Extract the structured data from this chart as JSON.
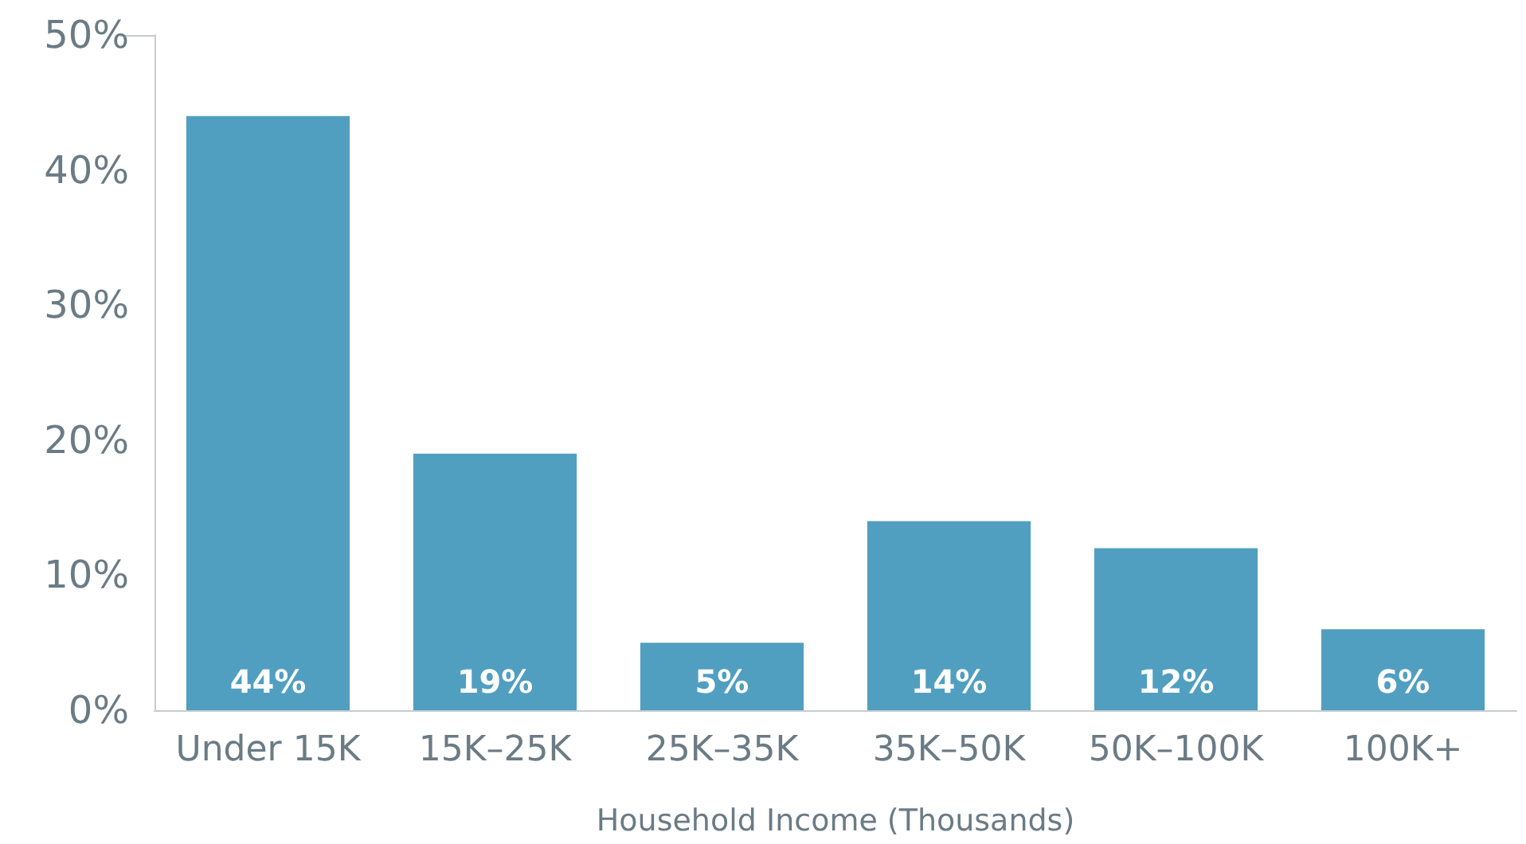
{
  "chart_data": {
    "type": "bar",
    "xlabel": "Household Income (Thousands)",
    "categories": [
      "Under 15K",
      "15K–25K",
      "25K–35K",
      "35K–50K",
      "50K–100K",
      "100K+"
    ],
    "values": [
      44,
      19,
      5,
      14,
      12,
      6
    ],
    "value_labels": [
      "44%",
      "19%",
      "5%",
      "14%",
      "12%",
      "6%"
    ],
    "color": "#519fc0",
    "ylim": [
      0,
      50
    ],
    "yticks": [
      {
        "value": 0,
        "label": "0%"
      },
      {
        "value": 10,
        "label": "10%"
      },
      {
        "value": 20,
        "label": "20%"
      },
      {
        "value": 30,
        "label": "30%"
      },
      {
        "value": 40,
        "label": "40%"
      },
      {
        "value": 50,
        "label": "50%"
      }
    ],
    "grid": false
  }
}
